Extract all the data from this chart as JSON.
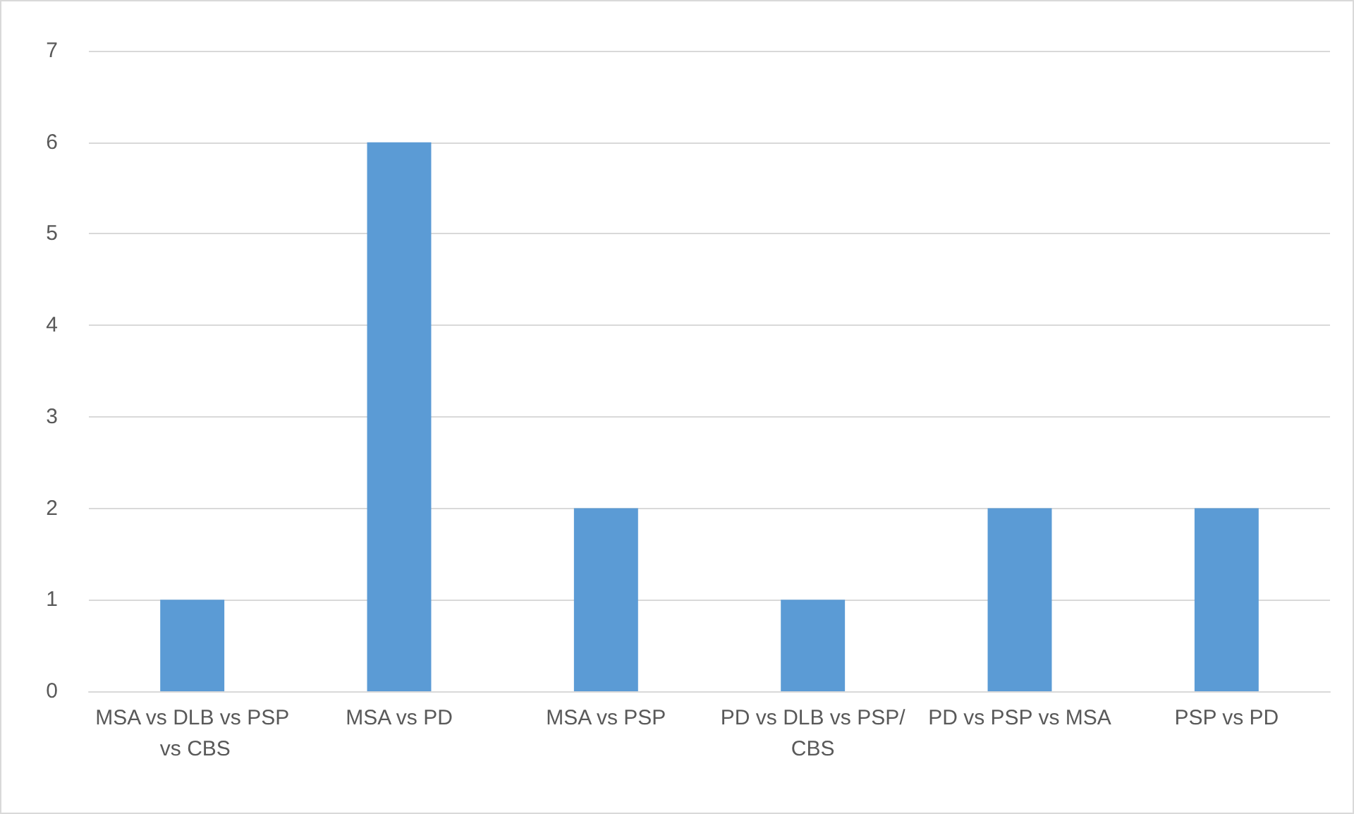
{
  "chart_data": {
    "type": "bar",
    "categories": [
      "MSA vs DLB vs PSP vs CBS",
      "MSA vs PD",
      "MSA vs PSP",
      "PD vs DLB vs PSP/CBS",
      "PD vs PSP vs MSA",
      "PSP vs PD"
    ],
    "values": [
      1,
      6,
      2,
      1,
      2,
      2
    ],
    "color": "#5b9bd5",
    "ylim": [
      0,
      7
    ],
    "yticks": [
      0,
      1,
      2,
      3,
      4,
      5,
      6,
      7
    ],
    "grid": "y"
  }
}
